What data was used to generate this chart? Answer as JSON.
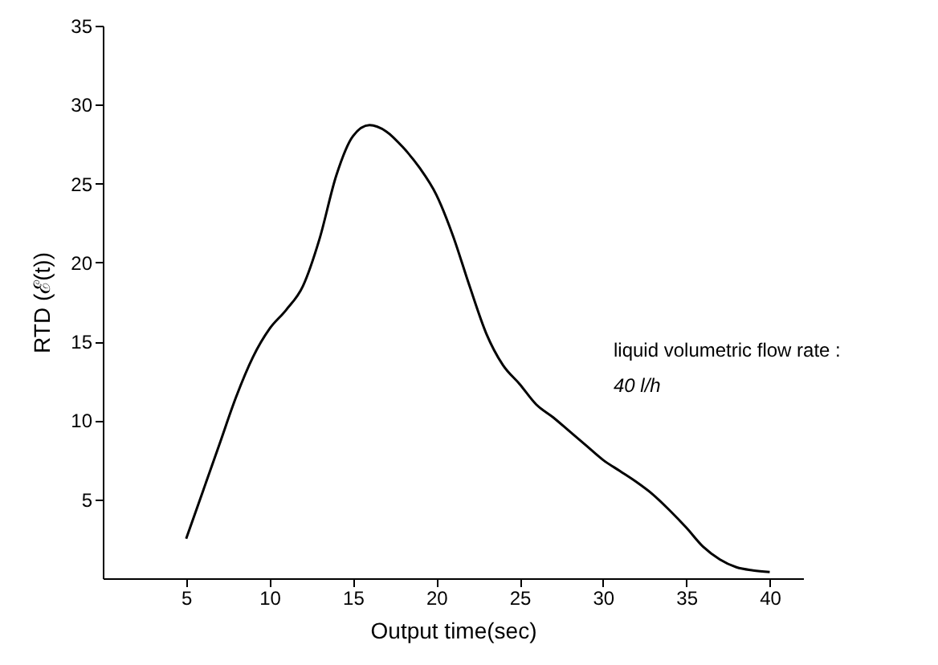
{
  "chart_data": {
    "type": "line",
    "xlabel": "Output time(sec)",
    "ylabel": "RTD (ℰ(t))",
    "annotations": [
      "liquid volumetric flow rate :",
      "40 l/h"
    ],
    "x": [
      5,
      6,
      7,
      8,
      9,
      10,
      11,
      12,
      13,
      14,
      15,
      16,
      17,
      18,
      19,
      20,
      21,
      22,
      23,
      24,
      25,
      26,
      27,
      28,
      29,
      30,
      31,
      32,
      33,
      34,
      35,
      36,
      37,
      38,
      39,
      40
    ],
    "series": [
      {
        "color": "#000000",
        "values": [
          2.5,
          5.5,
          8.5,
          11.5,
          14,
          15.8,
          17,
          18.5,
          21.5,
          25.5,
          28,
          28.7,
          28.3,
          27.3,
          26,
          24.3,
          21.7,
          18.5,
          15.5,
          13.5,
          12.3,
          11,
          10.2,
          9.3,
          8.4,
          7.5,
          6.8,
          6.1,
          5.3,
          4.3,
          3.2,
          2,
          1.2,
          0.7,
          0.5,
          0.4
        ]
      }
    ],
    "xlim": [
      0,
      42
    ],
    "ylim": [
      0,
      35
    ],
    "xticks": [
      5,
      10,
      15,
      20,
      25,
      30,
      35,
      40
    ],
    "yticks": [
      5,
      10,
      15,
      20,
      25,
      30,
      35
    ],
    "grid": false,
    "marker": "none",
    "line_style": "solid"
  }
}
